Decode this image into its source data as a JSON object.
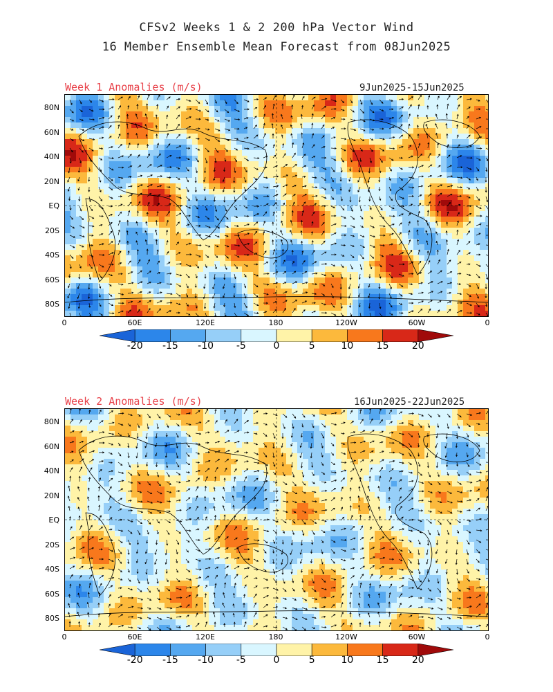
{
  "title": {
    "line1": "CFSv2 Weeks 1 & 2 200 hPa Vector Wind",
    "line2": "16 Member Ensemble Mean Forecast from 08Jun2025"
  },
  "panels": [
    {
      "label": "Week 1 Anomalies (m/s)",
      "dates": "9Jun2025-15Jun2025"
    },
    {
      "label": "Week 2 Anomalies (m/s)",
      "dates": "16Jun2025-22Jun2025"
    }
  ],
  "lat_labels": [
    "80N",
    "60N",
    "40N",
    "20N",
    "EQ",
    "20S",
    "40S",
    "60S",
    "80S"
  ],
  "lon_labels": [
    "0",
    "60E",
    "120E",
    "180",
    "120W",
    "60W",
    "0"
  ],
  "colorbar": {
    "ticks": [
      "-20",
      "-15",
      "-10",
      "-5",
      "0",
      "5",
      "10",
      "15",
      "20"
    ],
    "colors": [
      "#1a64d8",
      "#2c86ea",
      "#55a8f0",
      "#96cff8",
      "#d9f6ff",
      "#fff3a8",
      "#fcb93c",
      "#f8781c",
      "#d82818",
      "#a00a0a"
    ]
  },
  "colors": {
    "title_red": "#e8424a"
  }
}
